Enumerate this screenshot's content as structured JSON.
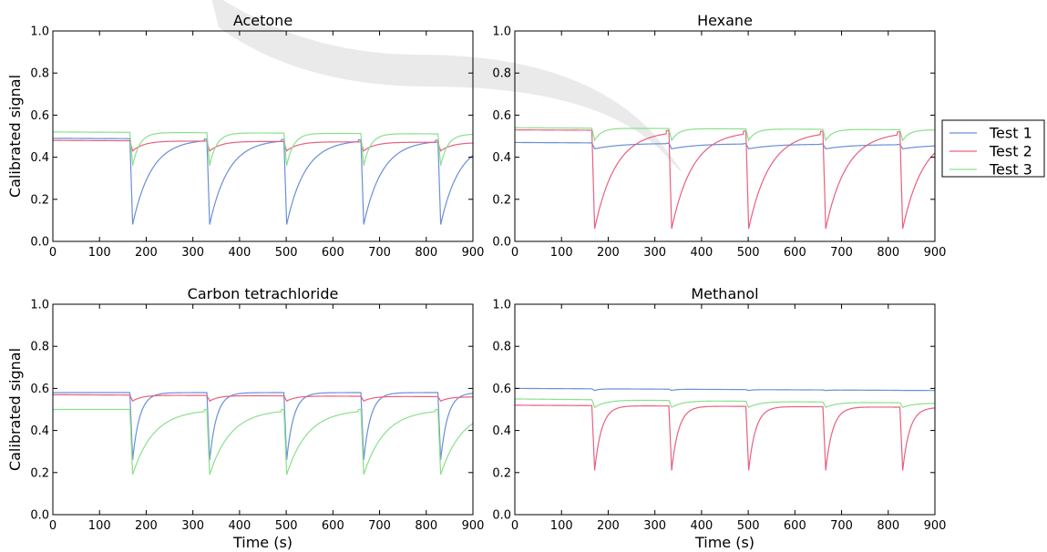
{
  "chart_data": [
    {
      "type": "line",
      "title": "Acetone",
      "xlabel": "",
      "ylabel": "Calibrated signal",
      "xlim": [
        0,
        900
      ],
      "ylim": [
        0.0,
        1.0
      ],
      "xticks": [
        "0",
        "100",
        "200",
        "300",
        "400",
        "500",
        "600",
        "700",
        "800",
        "900"
      ],
      "yticks": [
        "0.0",
        "0.2",
        "0.4",
        "0.6",
        "0.8",
        "1.0"
      ],
      "events": [
        165,
        330,
        495,
        660,
        825
      ],
      "series": [
        {
          "name": "Test 1",
          "color": "#6a8fd8",
          "baseline": 0.49,
          "baseline_end": 0.48,
          "min": 0.08,
          "recovery": 40
        },
        {
          "name": "Test 2",
          "color": "#e8607f",
          "baseline": 0.48,
          "baseline_end": 0.47,
          "min": 0.43,
          "recovery": 25
        },
        {
          "name": "Test 3",
          "color": "#8be08b",
          "baseline": 0.52,
          "baseline_end": 0.51,
          "min": 0.36,
          "recovery": 15
        }
      ]
    },
    {
      "type": "line",
      "title": "Hexane",
      "xlabel": "",
      "ylabel": "",
      "xlim": [
        0,
        900
      ],
      "ylim": [
        0.0,
        1.0
      ],
      "xticks": [
        "0",
        "100",
        "200",
        "300",
        "400",
        "500",
        "600",
        "700",
        "800",
        "900"
      ],
      "yticks": [
        "0.0",
        "0.2",
        "0.4",
        "0.6",
        "0.8",
        "1.0"
      ],
      "events": [
        165,
        330,
        495,
        660,
        825
      ],
      "series": [
        {
          "name": "Test 1",
          "color": "#6a8fd8",
          "baseline": 0.47,
          "baseline_end": 0.46,
          "min": 0.44,
          "recovery": 60
        },
        {
          "name": "Test 2",
          "color": "#e8607f",
          "baseline": 0.53,
          "baseline_end": 0.52,
          "min": 0.06,
          "recovery": 45
        },
        {
          "name": "Test 3",
          "color": "#8be08b",
          "baseline": 0.54,
          "baseline_end": 0.53,
          "min": 0.48,
          "recovery": 15
        }
      ]
    },
    {
      "type": "line",
      "title": "Carbon tetrachloride",
      "xlabel": "Time (s)",
      "ylabel": "Calibrated signal",
      "xlim": [
        0,
        900
      ],
      "ylim": [
        0.0,
        1.0
      ],
      "xticks": [
        "0",
        "100",
        "200",
        "300",
        "400",
        "500",
        "600",
        "700",
        "800",
        "900"
      ],
      "yticks": [
        "0.0",
        "0.2",
        "0.4",
        "0.6",
        "0.8",
        "1.0"
      ],
      "events": [
        165,
        330,
        495,
        660,
        825
      ],
      "series": [
        {
          "name": "Test 1",
          "color": "#6a8fd8",
          "baseline": 0.58,
          "baseline_end": 0.58,
          "min": 0.26,
          "recovery": 15
        },
        {
          "name": "Test 2",
          "color": "#e8607f",
          "baseline": 0.57,
          "baseline_end": 0.56,
          "min": 0.54,
          "recovery": 20
        },
        {
          "name": "Test 3",
          "color": "#8be08b",
          "baseline": 0.5,
          "baseline_end": 0.5,
          "min": 0.19,
          "recovery": 45
        }
      ]
    },
    {
      "type": "line",
      "title": "Methanol",
      "xlabel": "Time (s)",
      "ylabel": "",
      "xlim": [
        0,
        900
      ],
      "ylim": [
        0.0,
        1.0
      ],
      "xticks": [
        "0",
        "100",
        "200",
        "300",
        "400",
        "500",
        "600",
        "700",
        "800",
        "900"
      ],
      "yticks": [
        "0.0",
        "0.2",
        "0.4",
        "0.6",
        "0.8",
        "1.0"
      ],
      "events": [
        165,
        330,
        495,
        660,
        825
      ],
      "series": [
        {
          "name": "Test 1",
          "color": "#6a8fd8",
          "baseline": 0.6,
          "baseline_end": 0.59,
          "min": 0.59,
          "recovery": 10
        },
        {
          "name": "Test 2",
          "color": "#e8607f",
          "baseline": 0.52,
          "baseline_end": 0.51,
          "min": 0.21,
          "recovery": 15
        },
        {
          "name": "Test 3",
          "color": "#8be08b",
          "baseline": 0.55,
          "baseline_end": 0.53,
          "min": 0.51,
          "recovery": 25
        }
      ]
    }
  ],
  "legend": {
    "placement": "right",
    "entries": [
      {
        "name": "Test 1",
        "color": "#6a8fd8"
      },
      {
        "name": "Test 2",
        "color": "#e8607f"
      },
      {
        "name": "Test 3",
        "color": "#8be08b"
      }
    ]
  }
}
